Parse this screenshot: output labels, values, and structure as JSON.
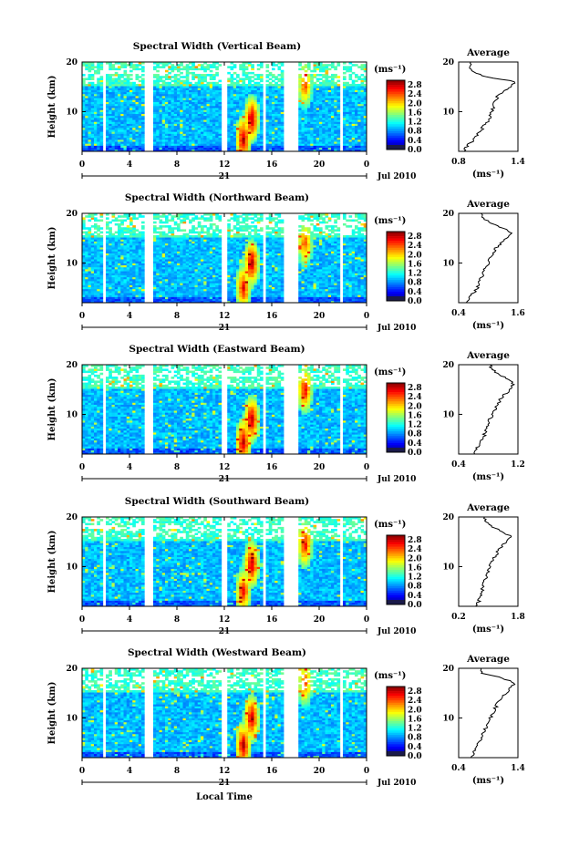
{
  "chart_data": [
    {
      "type": "heatmap",
      "title": "Spectral Width (Vertical Beam)",
      "xlabel": "",
      "ylabel": "Height (km)",
      "xlim": [
        0,
        24
      ],
      "ylim": [
        2,
        20
      ],
      "x_ticks": [
        "0",
        "4",
        "8",
        "12",
        "16",
        "20",
        "0"
      ],
      "y_ticks": [
        "20",
        "10"
      ],
      "date_day": "21",
      "date_label": "Jul 2010",
      "colorbar": {
        "unit": "(ms⁻¹)",
        "ticks": [
          "2.8",
          "2.4",
          "2.0",
          "1.6",
          "1.2",
          "0.8",
          "0.4",
          "0.0"
        ],
        "range": [
          0,
          3.0
        ]
      },
      "data_gaps_hours": [
        [
          1.7,
          2.1
        ],
        [
          5.3,
          5.9
        ],
        [
          11.7,
          12.2
        ],
        [
          15.2,
          15.6
        ],
        [
          17.0,
          18.3
        ],
        [
          21.7,
          22.1
        ]
      ],
      "hotspots": [
        {
          "x": 14.3,
          "y": 8.5,
          "value": 2.8
        },
        {
          "x": 13.6,
          "y": 4.5,
          "value": 2.8
        },
        {
          "x": 18.8,
          "y": 15.5,
          "value": 2.4
        }
      ],
      "profile": {
        "title": "Average",
        "xlabel": "(ms⁻¹)",
        "ylabel": "",
        "xlim": [
          0.8,
          1.4
        ],
        "x_ticks": [
          "0.8",
          "1.4"
        ],
        "y_ticks": [
          "20",
          "10"
        ],
        "height": [
          2,
          3,
          4,
          5,
          6,
          7,
          8,
          9,
          10,
          11,
          12,
          13,
          14,
          15,
          16,
          17,
          18,
          19,
          20
        ],
        "value": [
          0.86,
          0.88,
          0.94,
          0.98,
          1.02,
          1.05,
          1.09,
          1.12,
          1.14,
          1.15,
          1.17,
          1.19,
          1.25,
          1.33,
          1.38,
          1.08,
          0.95,
          0.9,
          0.92
        ]
      }
    },
    {
      "type": "heatmap",
      "title": "Spectral Width (Northward Beam)",
      "xlabel": "",
      "ylabel": "Height (km)",
      "xlim": [
        0,
        24
      ],
      "ylim": [
        2,
        20
      ],
      "x_ticks": [
        "0",
        "4",
        "8",
        "12",
        "16",
        "20",
        "0"
      ],
      "y_ticks": [
        "20",
        "10"
      ],
      "date_day": "21",
      "date_label": "Jul 2010",
      "colorbar": {
        "unit": "(ms⁻¹)",
        "ticks": [
          "2.8",
          "2.4",
          "2.0",
          "1.6",
          "1.2",
          "0.8",
          "0.4",
          "0.0"
        ],
        "range": [
          0,
          3.0
        ]
      },
      "data_gaps_hours": [
        [
          1.7,
          2.1
        ],
        [
          5.3,
          5.9
        ],
        [
          11.7,
          12.2
        ],
        [
          15.2,
          15.6
        ],
        [
          17.0,
          18.3
        ],
        [
          21.7,
          22.1
        ]
      ],
      "hotspots": [
        {
          "x": 14.3,
          "y": 10.0,
          "value": 2.8
        },
        {
          "x": 13.6,
          "y": 5.0,
          "value": 2.6
        },
        {
          "x": 18.8,
          "y": 14.0,
          "value": 2.4
        }
      ],
      "profile": {
        "title": "Average",
        "xlabel": "(ms⁻¹)",
        "ylabel": "",
        "xlim": [
          0.4,
          1.6
        ],
        "x_ticks": [
          "0.4",
          "1.6"
        ],
        "y_ticks": [
          "20",
          "10"
        ],
        "height": [
          2,
          3,
          4,
          5,
          6,
          7,
          8,
          9,
          10,
          11,
          12,
          13,
          14,
          15,
          16,
          17,
          18,
          19,
          20
        ],
        "value": [
          0.55,
          0.62,
          0.7,
          0.78,
          0.82,
          0.86,
          0.9,
          0.95,
          1.0,
          1.05,
          1.1,
          1.15,
          1.25,
          1.35,
          1.45,
          1.3,
          1.05,
          0.9,
          0.85
        ]
      }
    },
    {
      "type": "heatmap",
      "title": "Spectral Width (Eastward Beam)",
      "xlabel": "",
      "ylabel": "Height (km)",
      "xlim": [
        0,
        24
      ],
      "ylim": [
        2,
        20
      ],
      "x_ticks": [
        "0",
        "4",
        "8",
        "12",
        "16",
        "20",
        "0"
      ],
      "y_ticks": [
        "20",
        "10"
      ],
      "date_day": "21",
      "date_label": "Jul 2010",
      "colorbar": {
        "unit": "(ms⁻¹)",
        "ticks": [
          "2.8",
          "2.4",
          "2.0",
          "1.6",
          "1.2",
          "0.8",
          "0.4",
          "0.0"
        ],
        "range": [
          0,
          3.0
        ]
      },
      "data_gaps_hours": [
        [
          1.7,
          2.1
        ],
        [
          5.3,
          5.9
        ],
        [
          11.7,
          12.2
        ],
        [
          15.2,
          15.6
        ],
        [
          17.0,
          18.3
        ],
        [
          21.7,
          22.1
        ]
      ],
      "hotspots": [
        {
          "x": 14.3,
          "y": 9.0,
          "value": 2.8
        },
        {
          "x": 13.6,
          "y": 4.5,
          "value": 2.8
        },
        {
          "x": 18.8,
          "y": 15.0,
          "value": 2.6
        }
      ],
      "profile": {
        "title": "Average",
        "xlabel": "(ms⁻¹)",
        "ylabel": "",
        "xlim": [
          0.4,
          1.2
        ],
        "x_ticks": [
          "0.4",
          "1.2"
        ],
        "y_ticks": [
          "20",
          "10"
        ],
        "height": [
          2,
          3,
          4,
          5,
          6,
          7,
          8,
          9,
          10,
          11,
          12,
          13,
          14,
          15,
          16,
          17,
          18,
          19,
          20
        ],
        "value": [
          0.6,
          0.64,
          0.68,
          0.72,
          0.75,
          0.78,
          0.8,
          0.82,
          0.86,
          0.9,
          0.93,
          0.96,
          1.02,
          1.1,
          1.14,
          1.08,
          0.95,
          0.85,
          0.82
        ]
      }
    },
    {
      "type": "heatmap",
      "title": "Spectral Width (Southward Beam)",
      "xlabel": "",
      "ylabel": "Height (km)",
      "xlim": [
        0,
        24
      ],
      "ylim": [
        2,
        20
      ],
      "x_ticks": [
        "0",
        "4",
        "8",
        "12",
        "16",
        "20",
        "0"
      ],
      "y_ticks": [
        "20",
        "10"
      ],
      "date_day": "21",
      "date_label": "Jul 2010",
      "colorbar": {
        "unit": "(ms⁻¹)",
        "ticks": [
          "2.8",
          "2.4",
          "2.0",
          "1.6",
          "1.2",
          "0.8",
          "0.4",
          "0.0"
        ],
        "range": [
          0,
          3.0
        ]
      },
      "data_gaps_hours": [
        [
          1.7,
          2.1
        ],
        [
          5.3,
          5.9
        ],
        [
          11.7,
          12.2
        ],
        [
          15.2,
          15.6
        ],
        [
          17.0,
          18.3
        ],
        [
          21.7,
          22.1
        ]
      ],
      "hotspots": [
        {
          "x": 14.3,
          "y": 10.5,
          "value": 2.8
        },
        {
          "x": 13.6,
          "y": 5.0,
          "value": 2.6
        },
        {
          "x": 18.8,
          "y": 14.5,
          "value": 2.6
        }
      ],
      "profile": {
        "title": "Average",
        "xlabel": "(ms⁻¹)",
        "ylabel": "",
        "xlim": [
          0.2,
          1.8
        ],
        "x_ticks": [
          "0.2",
          "1.8"
        ],
        "y_ticks": [
          "20",
          "10"
        ],
        "height": [
          2,
          3,
          4,
          5,
          6,
          7,
          8,
          9,
          10,
          11,
          12,
          13,
          14,
          15,
          16,
          17,
          18,
          19,
          20
        ],
        "value": [
          0.7,
          0.74,
          0.78,
          0.82,
          0.86,
          0.9,
          0.95,
          1.0,
          1.05,
          1.1,
          1.18,
          1.25,
          1.35,
          1.5,
          1.62,
          1.4,
          1.1,
          0.95,
          0.9
        ]
      }
    },
    {
      "type": "heatmap",
      "title": "Spectral Width (Westward Beam)",
      "xlabel": "Local Time",
      "ylabel": "Height (km)",
      "xlim": [
        0,
        24
      ],
      "ylim": [
        2,
        20
      ],
      "x_ticks": [
        "0",
        "4",
        "8",
        "12",
        "16",
        "20",
        "0"
      ],
      "y_ticks": [
        "20",
        "10"
      ],
      "date_day": "21",
      "date_label": "Jul 2010",
      "colorbar": {
        "unit": "(ms⁻¹)",
        "ticks": [
          "2.8",
          "2.4",
          "2.0",
          "1.6",
          "1.2",
          "0.8",
          "0.4",
          "0.0"
        ],
        "range": [
          0,
          3.0
        ]
      },
      "data_gaps_hours": [
        [
          1.7,
          2.1
        ],
        [
          5.3,
          5.9
        ],
        [
          11.7,
          12.2
        ],
        [
          15.2,
          15.6
        ],
        [
          17.0,
          18.3
        ],
        [
          21.7,
          22.1
        ]
      ],
      "hotspots": [
        {
          "x": 14.3,
          "y": 10.0,
          "value": 2.8
        },
        {
          "x": 13.6,
          "y": 4.5,
          "value": 2.8
        },
        {
          "x": 18.8,
          "y": 17.0,
          "value": 2.4
        }
      ],
      "profile": {
        "title": "Average",
        "xlabel": "(ms⁻¹)",
        "ylabel": "",
        "xlim": [
          0.4,
          1.4
        ],
        "x_ticks": [
          "0.4",
          "1.4"
        ],
        "y_ticks": [
          "20",
          "10"
        ],
        "height": [
          2,
          3,
          4,
          5,
          6,
          7,
          8,
          9,
          10,
          11,
          12,
          13,
          14,
          15,
          16,
          17,
          18,
          19,
          20
        ],
        "value": [
          0.62,
          0.66,
          0.7,
          0.74,
          0.78,
          0.82,
          0.86,
          0.9,
          0.94,
          0.98,
          1.02,
          1.06,
          1.12,
          1.2,
          1.26,
          1.35,
          1.15,
          0.8,
          0.78
        ]
      }
    }
  ]
}
